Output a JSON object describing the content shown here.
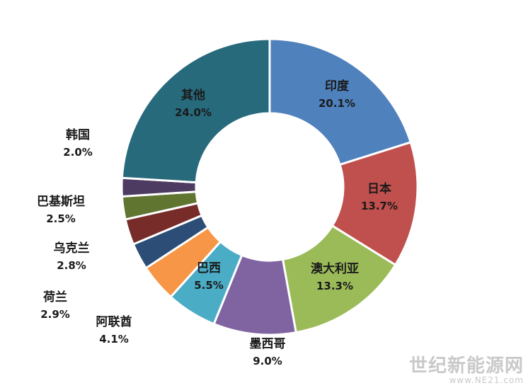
{
  "chart_data": {
    "type": "pie",
    "donut": true,
    "start_angle_deg": 0,
    "direction": "clockwise",
    "slices": [
      {
        "label": "印度",
        "value": 20.1,
        "display": "20.1%",
        "color": "#4f81bd"
      },
      {
        "label": "日本",
        "value": 13.7,
        "display": "13.7%",
        "color": "#c0504d"
      },
      {
        "label": "澳大利亚",
        "value": 13.3,
        "display": "13.3%",
        "color": "#9bbb59"
      },
      {
        "label": "墨西哥",
        "value": 9.0,
        "display": "9.0%",
        "color": "#8064a2"
      },
      {
        "label": "巴西",
        "value": 5.5,
        "display": "5.5%",
        "color": "#4bacc6"
      },
      {
        "label": "阿联酋",
        "value": 4.1,
        "display": "4.1%",
        "color": "#f79646"
      },
      {
        "label": "荷兰",
        "value": 2.9,
        "display": "2.9%",
        "color": "#2c4d75"
      },
      {
        "label": "乌克兰",
        "value": 2.8,
        "display": "2.8%",
        "color": "#772c2a"
      },
      {
        "label": "巴基斯坦",
        "value": 2.5,
        "display": "2.5%",
        "color": "#5f7530"
      },
      {
        "label": "韩国",
        "value": 2.0,
        "display": "2.0%",
        "color": "#4d3b62"
      },
      {
        "label": "其他",
        "value": 24.0,
        "display": "24.0%",
        "color": "#276a7c"
      }
    ]
  },
  "watermark": {
    "name": "世纪新能源网",
    "url": "www.NE21.com"
  }
}
